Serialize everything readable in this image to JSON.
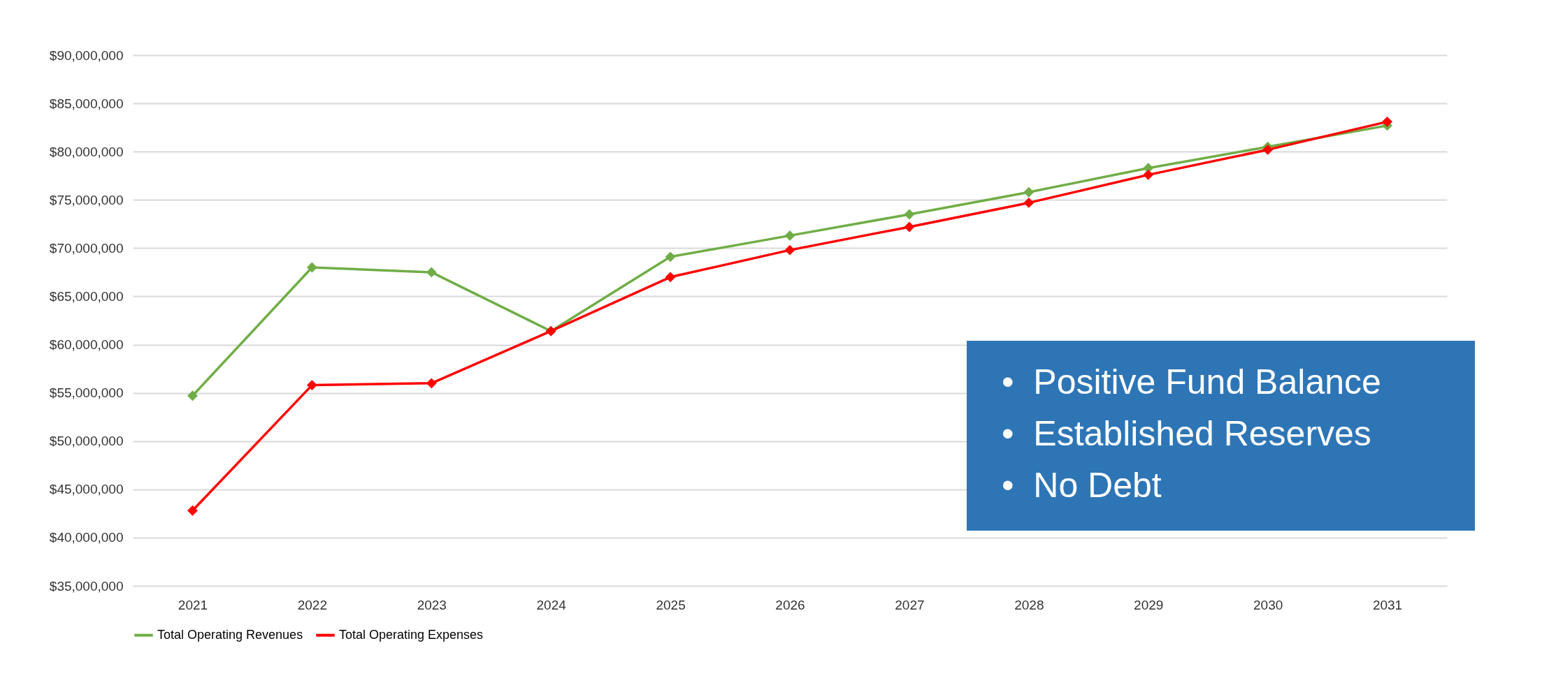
{
  "chart_data": {
    "type": "line",
    "categories": [
      "2021",
      "2022",
      "2023",
      "2024",
      "2025",
      "2026",
      "2027",
      "2028",
      "2029",
      "2030",
      "2031"
    ],
    "series": [
      {
        "name": "Total Operating Revenues",
        "color": "#70ad47",
        "values": [
          54700000,
          68000000,
          67500000,
          61400000,
          69100000,
          71300000,
          73500000,
          75800000,
          78300000,
          80500000,
          82700000
        ]
      },
      {
        "name": "Total Operating Expenses",
        "color": "#ff0000",
        "values": [
          42800000,
          55800000,
          56000000,
          61400000,
          67000000,
          69800000,
          72200000,
          74700000,
          77600000,
          80200000,
          83100000
        ]
      }
    ],
    "ylim": [
      35000000,
      90000000
    ],
    "yticks": [
      {
        "value": 35000000,
        "label": "$35,000,000"
      },
      {
        "value": 40000000,
        "label": "$40,000,000"
      },
      {
        "value": 45000000,
        "label": "$45,000,000"
      },
      {
        "value": 50000000,
        "label": "$50,000,000"
      },
      {
        "value": 55000000,
        "label": "$55,000,000"
      },
      {
        "value": 60000000,
        "label": "$60,000,000"
      },
      {
        "value": 65000000,
        "label": "$65,000,000"
      },
      {
        "value": 70000000,
        "label": "$70,000,000"
      },
      {
        "value": 75000000,
        "label": "$75,000,000"
      },
      {
        "value": 80000000,
        "label": "$80,000,000"
      },
      {
        "value": 85000000,
        "label": "$85,000,000"
      },
      {
        "value": 90000000,
        "label": "$90,000,000"
      }
    ],
    "annotations": [
      "•  Positive Fund Balance",
      "•  Established Reserves",
      "•  No Debt"
    ],
    "grid": "y",
    "legend": "bottom",
    "marker": "diamond",
    "line_style": "solid"
  }
}
